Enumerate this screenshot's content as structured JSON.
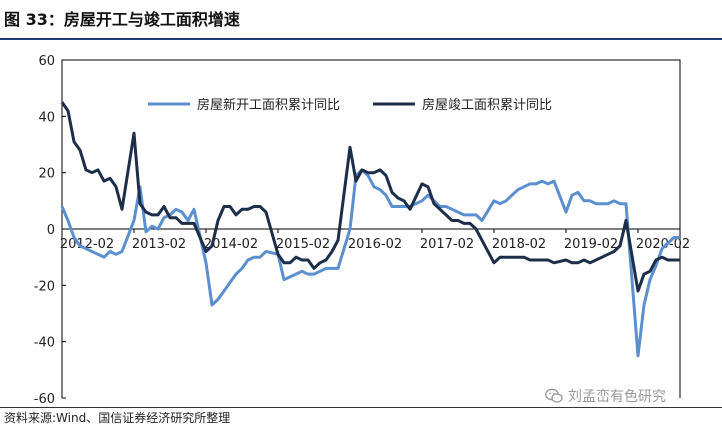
{
  "figure_title": "图 33：房屋开工与竣工面积增速",
  "source_note": "资料来源:Wind、国信证券经济研究所整理",
  "watermark": "刘孟峦有色研究",
  "watermark_icon": "wechat-icon",
  "chart_data": {
    "type": "line",
    "ylim": [
      -60,
      60
    ],
    "y_ticks": [
      60,
      40,
      20,
      0,
      -20,
      -40,
      -60
    ],
    "y_tick_labels": [
      "60",
      "40",
      "20",
      "0",
      "-20",
      "-40",
      "-60"
    ],
    "x_tick_labels": [
      "2012-02",
      "2013-02",
      "2014-02",
      "2015-02",
      "2016-02",
      "2017-02",
      "2018-02",
      "2019-02",
      "2020-02"
    ],
    "x_start": "2012-02",
    "grid": false,
    "legend_position": "top-center",
    "series": [
      {
        "name": "房屋新开工面积累计同比",
        "color": "#5b8fd0",
        "points": [
          [
            "2012-02",
            8
          ],
          [
            "2012-03",
            3
          ],
          [
            "2012-04",
            -3
          ],
          [
            "2012-05",
            -6
          ],
          [
            "2012-06",
            -7
          ],
          [
            "2012-07",
            -8
          ],
          [
            "2012-08",
            -9
          ],
          [
            "2012-09",
            -10
          ],
          [
            "2012-10",
            -8
          ],
          [
            "2012-11",
            -9
          ],
          [
            "2012-12",
            -8
          ],
          [
            "2013-02",
            3
          ],
          [
            "2013-03",
            15
          ],
          [
            "2013-04",
            -1
          ],
          [
            "2013-05",
            1
          ],
          [
            "2013-06",
            0
          ],
          [
            "2013-07",
            4
          ],
          [
            "2013-08",
            5
          ],
          [
            "2013-09",
            7
          ],
          [
            "2013-10",
            6
          ],
          [
            "2013-11",
            3
          ],
          [
            "2013-12",
            7
          ],
          [
            "2014-02",
            -12
          ],
          [
            "2014-03",
            -27
          ],
          [
            "2014-04",
            -25
          ],
          [
            "2014-05",
            -22
          ],
          [
            "2014-06",
            -19
          ],
          [
            "2014-07",
            -16
          ],
          [
            "2014-08",
            -14
          ],
          [
            "2014-09",
            -11
          ],
          [
            "2014-10",
            -10
          ],
          [
            "2014-11",
            -10
          ],
          [
            "2014-12",
            -8
          ],
          [
            "2015-02",
            -9
          ],
          [
            "2015-03",
            -18
          ],
          [
            "2015-04",
            -17
          ],
          [
            "2015-05",
            -16
          ],
          [
            "2015-06",
            -15
          ],
          [
            "2015-07",
            -16
          ],
          [
            "2015-08",
            -16
          ],
          [
            "2015-09",
            -15
          ],
          [
            "2015-10",
            -14
          ],
          [
            "2015-11",
            -14
          ],
          [
            "2015-12",
            -14
          ],
          [
            "2016-02",
            0
          ],
          [
            "2016-03",
            19
          ],
          [
            "2016-04",
            21
          ],
          [
            "2016-05",
            19
          ],
          [
            "2016-06",
            15
          ],
          [
            "2016-07",
            14
          ],
          [
            "2016-08",
            12
          ],
          [
            "2016-09",
            8
          ],
          [
            "2016-10",
            8
          ],
          [
            "2016-11",
            8
          ],
          [
            "2016-12",
            8
          ],
          [
            "2017-02",
            10
          ],
          [
            "2017-03",
            12
          ],
          [
            "2017-04",
            10
          ],
          [
            "2017-05",
            8
          ],
          [
            "2017-06",
            8
          ],
          [
            "2017-07",
            7
          ],
          [
            "2017-08",
            6
          ],
          [
            "2017-09",
            5
          ],
          [
            "2017-10",
            5
          ],
          [
            "2017-11",
            5
          ],
          [
            "2017-12",
            3
          ],
          [
            "2018-02",
            10
          ],
          [
            "2018-03",
            9
          ],
          [
            "2018-04",
            10
          ],
          [
            "2018-05",
            12
          ],
          [
            "2018-06",
            14
          ],
          [
            "2018-07",
            15
          ],
          [
            "2018-08",
            16
          ],
          [
            "2018-09",
            16
          ],
          [
            "2018-10",
            17
          ],
          [
            "2018-11",
            16
          ],
          [
            "2018-12",
            17
          ],
          [
            "2019-02",
            6
          ],
          [
            "2019-03",
            12
          ],
          [
            "2019-04",
            13
          ],
          [
            "2019-05",
            10
          ],
          [
            "2019-06",
            10
          ],
          [
            "2019-07",
            9
          ],
          [
            "2019-08",
            9
          ],
          [
            "2019-09",
            9
          ],
          [
            "2019-10",
            10
          ],
          [
            "2019-11",
            9
          ],
          [
            "2019-12",
            9
          ],
          [
            "2020-02",
            -45
          ],
          [
            "2020-03",
            -27
          ],
          [
            "2020-04",
            -18
          ],
          [
            "2020-05",
            -13
          ],
          [
            "2020-06",
            -7
          ],
          [
            "2020-07",
            -5
          ],
          [
            "2020-08",
            -3
          ],
          [
            "2020-09",
            -3
          ]
        ]
      },
      {
        "name": "房屋竣工面积累计同比",
        "color": "#1c2e4a",
        "points": [
          [
            "2012-02",
            45
          ],
          [
            "2012-03",
            42
          ],
          [
            "2012-04",
            31
          ],
          [
            "2012-05",
            28
          ],
          [
            "2012-06",
            21
          ],
          [
            "2012-07",
            20
          ],
          [
            "2012-08",
            21
          ],
          [
            "2012-09",
            17
          ],
          [
            "2012-10",
            18
          ],
          [
            "2012-11",
            15
          ],
          [
            "2012-12",
            7
          ],
          [
            "2013-02",
            34
          ],
          [
            "2013-03",
            9
          ],
          [
            "2013-04",
            6
          ],
          [
            "2013-05",
            5
          ],
          [
            "2013-06",
            5
          ],
          [
            "2013-07",
            8
          ],
          [
            "2013-08",
            4
          ],
          [
            "2013-09",
            4
          ],
          [
            "2013-10",
            2
          ],
          [
            "2013-11",
            2
          ],
          [
            "2013-12",
            2
          ],
          [
            "2014-02",
            -8
          ],
          [
            "2014-03",
            -6
          ],
          [
            "2014-04",
            3
          ],
          [
            "2014-05",
            8
          ],
          [
            "2014-06",
            8
          ],
          [
            "2014-07",
            5
          ],
          [
            "2014-08",
            7
          ],
          [
            "2014-09",
            7
          ],
          [
            "2014-10",
            8
          ],
          [
            "2014-11",
            8
          ],
          [
            "2014-12",
            6
          ],
          [
            "2015-02",
            -9
          ],
          [
            "2015-03",
            -12
          ],
          [
            "2015-04",
            -12
          ],
          [
            "2015-05",
            -10
          ],
          [
            "2015-06",
            -11
          ],
          [
            "2015-07",
            -11
          ],
          [
            "2015-08",
            -14
          ],
          [
            "2015-09",
            -12
          ],
          [
            "2015-10",
            -11
          ],
          [
            "2015-11",
            -8
          ],
          [
            "2015-12",
            -4
          ],
          [
            "2016-02",
            29
          ],
          [
            "2016-03",
            17
          ],
          [
            "2016-04",
            21
          ],
          [
            "2016-05",
            20
          ],
          [
            "2016-06",
            20
          ],
          [
            "2016-07",
            21
          ],
          [
            "2016-08",
            19
          ],
          [
            "2016-09",
            13
          ],
          [
            "2016-10",
            11
          ],
          [
            "2016-11",
            10
          ],
          [
            "2016-12",
            7
          ],
          [
            "2017-02",
            16
          ],
          [
            "2017-03",
            15
          ],
          [
            "2017-04",
            9
          ],
          [
            "2017-05",
            7
          ],
          [
            "2017-06",
            5
          ],
          [
            "2017-07",
            3
          ],
          [
            "2017-08",
            3
          ],
          [
            "2017-09",
            2
          ],
          [
            "2017-10",
            2
          ],
          [
            "2017-11",
            0
          ],
          [
            "2017-12",
            -4
          ],
          [
            "2018-02",
            -12
          ],
          [
            "2018-03",
            -10
          ],
          [
            "2018-04",
            -10
          ],
          [
            "2018-05",
            -10
          ],
          [
            "2018-06",
            -10
          ],
          [
            "2018-07",
            -10
          ],
          [
            "2018-08",
            -11
          ],
          [
            "2018-09",
            -11
          ],
          [
            "2018-10",
            -11
          ],
          [
            "2018-11",
            -11
          ],
          [
            "2018-12",
            -12
          ],
          [
            "2019-02",
            -11
          ],
          [
            "2019-03",
            -12
          ],
          [
            "2019-04",
            -12
          ],
          [
            "2019-05",
            -11
          ],
          [
            "2019-06",
            -12
          ],
          [
            "2019-07",
            -11
          ],
          [
            "2019-08",
            -10
          ],
          [
            "2019-09",
            -9
          ],
          [
            "2019-10",
            -8
          ],
          [
            "2019-11",
            -6
          ],
          [
            "2019-12",
            3
          ],
          [
            "2020-02",
            -22
          ],
          [
            "2020-03",
            -16
          ],
          [
            "2020-04",
            -15
          ],
          [
            "2020-05",
            -11
          ],
          [
            "2020-06",
            -10
          ],
          [
            "2020-07",
            -11
          ],
          [
            "2020-08",
            -11
          ],
          [
            "2020-09",
            -11
          ]
        ]
      }
    ]
  }
}
